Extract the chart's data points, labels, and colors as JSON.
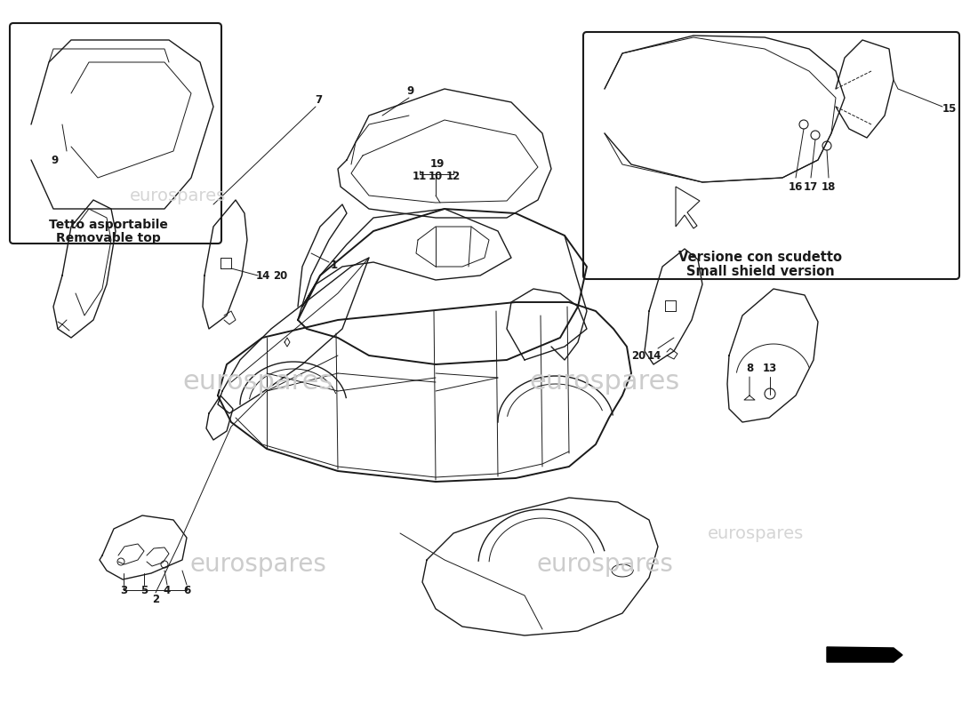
{
  "background_color": "#ffffff",
  "line_color": "#1a1a1a",
  "watermark_color": "#d0d0d0",
  "watermark_text": "eurospares",
  "annotation_fontsize": 8.5,
  "label_fontsize": 10.5,
  "inset1_label_line1": "Tetto asportabile",
  "inset1_label_line2": "Removable top",
  "inset2_label_line1": "Versione con scudetto",
  "inset2_label_line2": "Small shield version"
}
